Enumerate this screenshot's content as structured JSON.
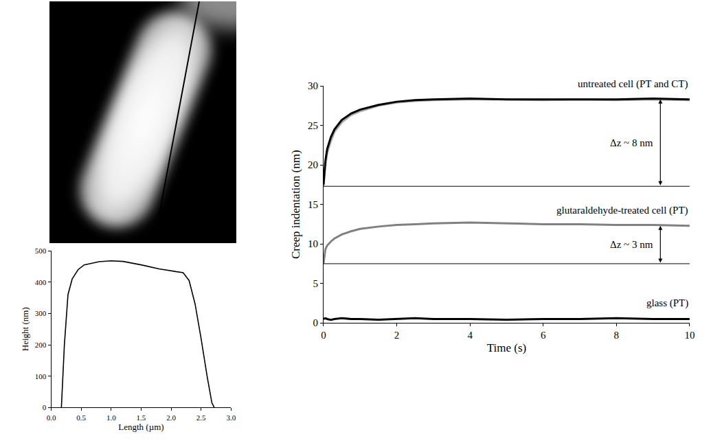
{
  "chart_data": [
    {
      "type": "line",
      "x_label": "Length (µm)",
      "y_label": "Height (nm)",
      "xlim": [
        0,
        3
      ],
      "xticks": [
        {
          "value": 0,
          "label": "0.0"
        },
        {
          "value": 0.5,
          "label": "0.5"
        },
        {
          "value": 1,
          "label": "1.0"
        },
        {
          "value": 1.5,
          "label": "1.5"
        },
        {
          "value": 2,
          "label": "2.0"
        },
        {
          "value": 2.5,
          "label": "2.5"
        },
        {
          "value": 3,
          "label": "3.0"
        }
      ],
      "ylim": [
        0,
        500
      ],
      "yticks": [
        0,
        100,
        200,
        300,
        400,
        500
      ],
      "grid": false,
      "series": [
        {
          "color": "#000000",
          "x": [
            0.17,
            0.22,
            0.28,
            0.35,
            0.45,
            0.55,
            0.8,
            1.0,
            1.2,
            1.5,
            1.8,
            2.1,
            2.2,
            2.3,
            2.4,
            2.5,
            2.6,
            2.68,
            2.72
          ],
          "values": [
            0,
            200,
            360,
            410,
            440,
            455,
            465,
            468,
            466,
            455,
            442,
            433,
            430,
            405,
            330,
            220,
            100,
            15,
            0
          ]
        }
      ]
    },
    {
      "type": "line",
      "x_label": "Time (s)",
      "y_label": "Creep indentation (nm)",
      "xlim": [
        0,
        10
      ],
      "xticks": [
        0,
        2,
        4,
        6,
        8,
        10
      ],
      "ylim": [
        0,
        30
      ],
      "yticks": [
        0,
        5,
        10,
        15,
        20,
        25,
        30
      ],
      "grid": false,
      "series": [
        {
          "color": "#aaaaaa",
          "x": [
            0,
            0.05,
            0.1,
            0.2,
            0.3,
            0.5,
            0.75,
            1,
            1.5,
            2,
            2.5,
            3,
            4,
            5,
            6,
            7,
            8,
            9,
            10
          ],
          "values": [
            17.3,
            19.8,
            21.5,
            23.0,
            24.2,
            25.4,
            26.3,
            26.8,
            27.5,
            27.9,
            28.1,
            28.2,
            28.3,
            28.3,
            28.2,
            28.3,
            28.2,
            28.3,
            28.2
          ]
        },
        {
          "name": "untreated cell (PT and CT)",
          "color": "#000000",
          "x": [
            0,
            0.05,
            0.1,
            0.2,
            0.3,
            0.5,
            0.75,
            1,
            1.5,
            2,
            2.5,
            3,
            4,
            5,
            6,
            7,
            8,
            9,
            10
          ],
          "values": [
            17.5,
            20.5,
            22.0,
            23.5,
            24.5,
            25.7,
            26.5,
            27.0,
            27.6,
            28.0,
            28.2,
            28.3,
            28.4,
            28.3,
            28.3,
            28.3,
            28.3,
            28.4,
            28.3
          ]
        },
        {
          "name": "glutaraldehyde-treated cell (PT)",
          "color": "#808080",
          "x": [
            0,
            0.05,
            0.1,
            0.2,
            0.3,
            0.5,
            0.75,
            1,
            1.5,
            2,
            2.5,
            3,
            4,
            5,
            6,
            7,
            8,
            9,
            10
          ],
          "values": [
            7.5,
            9.3,
            9.8,
            10.3,
            10.7,
            11.2,
            11.6,
            11.9,
            12.2,
            12.4,
            12.5,
            12.6,
            12.7,
            12.6,
            12.5,
            12.5,
            12.4,
            12.4,
            12.3
          ]
        },
        {
          "name": "glass (PT)",
          "color": "#000000",
          "x": [
            0,
            0.05,
            0.1,
            0.2,
            0.3,
            0.5,
            0.75,
            1,
            1.5,
            2,
            2.5,
            3,
            4,
            5,
            6,
            7,
            8,
            9,
            10
          ],
          "values": [
            0.5,
            0.6,
            0.5,
            0.4,
            0.5,
            0.6,
            0.5,
            0.5,
            0.4,
            0.5,
            0.6,
            0.5,
            0.5,
            0.4,
            0.5,
            0.5,
            0.6,
            0.5,
            0.5
          ]
        }
      ],
      "annotations": [
        {
          "text": "Δz ~ 8 nm",
          "x": 9.2,
          "from": 17.3,
          "to": 28.3
        },
        {
          "text": "Δz ~ 3 nm",
          "x": 9.2,
          "from": 7.5,
          "to": 12.3
        }
      ]
    }
  ]
}
